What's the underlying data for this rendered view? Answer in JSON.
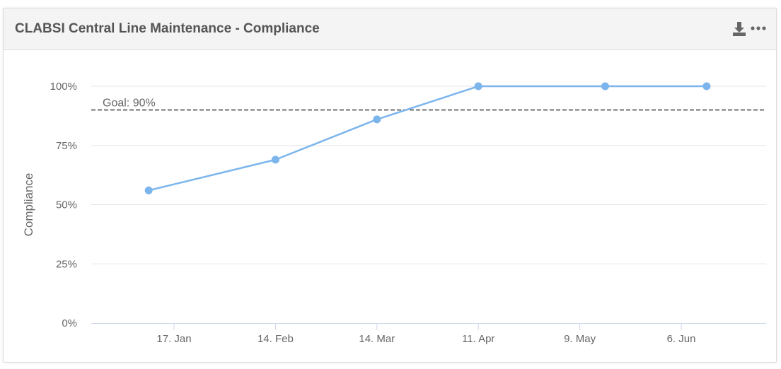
{
  "card": {
    "title": "CLABSI Central Line Maintenance - Compliance",
    "download_icon": "download-icon",
    "more_icon": "more-horizontal-icon"
  },
  "colors": {
    "series": "#7cb5ec",
    "goal_line": "#707070",
    "grid": "#e6e6e6",
    "axis": "#ccd6eb",
    "label": "#666666"
  },
  "chart_data": {
    "type": "line",
    "title": "",
    "xlabel": "",
    "ylabel": "Compliance",
    "x_ticks": [
      "17. Jan",
      "14. Feb",
      "14. Mar",
      "11. Apr",
      "9. May",
      "6. Jun"
    ],
    "y_ticks": [
      "0%",
      "25%",
      "50%",
      "75%",
      "100%"
    ],
    "ylim": [
      0,
      100
    ],
    "series": [
      {
        "x": [
          "2025-01-10",
          "2025-02-14",
          "2025-03-14",
          "2025-04-11",
          "2025-05-16",
          "2025-06-13"
        ],
        "values": [
          56,
          69,
          86,
          100,
          100,
          100
        ]
      }
    ],
    "goal": {
      "value": 90,
      "label": "Goal: 90%"
    },
    "grid": true,
    "legend": "none"
  }
}
